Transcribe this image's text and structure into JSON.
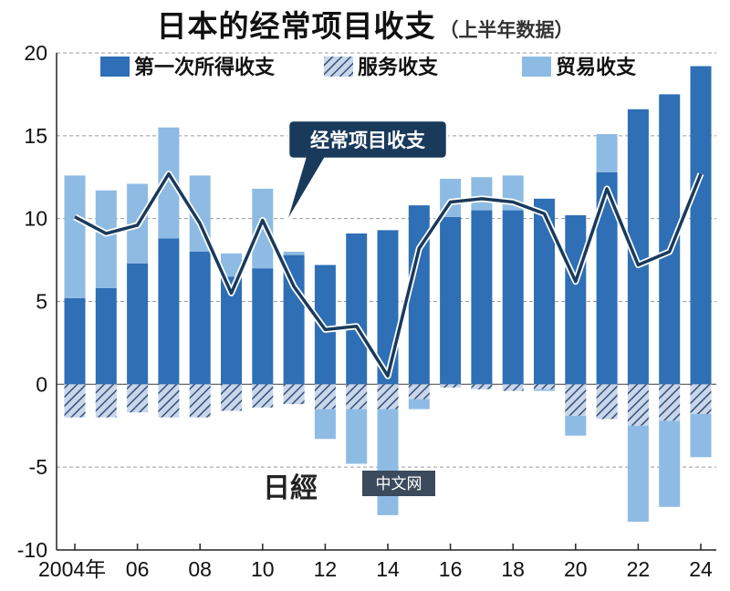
{
  "chart_data": {
    "type": "bar",
    "title": "日本的经常项目收支",
    "subtitle": "（上半年数据）",
    "years": [
      2004,
      2005,
      2006,
      2007,
      2008,
      2009,
      2010,
      2011,
      2012,
      2013,
      2014,
      2015,
      2016,
      2017,
      2018,
      2019,
      2020,
      2021,
      2022,
      2023,
      2024
    ],
    "series": [
      {
        "name": "第一次所得收支",
        "kind": "bar",
        "color": "#2e6fb6",
        "values": [
          5.2,
          5.8,
          7.3,
          8.8,
          8.0,
          6.5,
          7.0,
          7.8,
          7.2,
          9.1,
          9.3,
          10.8,
          10.1,
          10.5,
          10.5,
          11.2,
          10.2,
          12.8,
          16.6,
          17.5,
          19.2
        ]
      },
      {
        "name": "服务收支",
        "kind": "bar",
        "pattern": "hatch",
        "color": "#8aa6cf",
        "values": [
          -2.0,
          -2.0,
          -1.7,
          -2.0,
          -2.0,
          -1.6,
          -1.4,
          -1.2,
          -1.5,
          -1.5,
          -1.5,
          -0.9,
          -0.2,
          -0.3,
          -0.4,
          -0.3,
          -1.9,
          -2.1,
          -2.5,
          -2.2,
          -1.8
        ]
      },
      {
        "name": "贸易收支",
        "kind": "bar",
        "color": "#8dbbe3",
        "values": [
          7.4,
          5.9,
          4.8,
          6.7,
          4.6,
          1.4,
          4.8,
          0.2,
          -1.8,
          -3.3,
          -6.4,
          -0.6,
          2.3,
          2.0,
          2.1,
          -0.1,
          -1.2,
          2.3,
          -5.8,
          -5.2,
          -2.6
        ]
      },
      {
        "name": "经常项目收支",
        "kind": "line",
        "color": "#1a3a5c",
        "values": [
          10.1,
          9.1,
          9.6,
          12.7,
          9.7,
          5.5,
          9.9,
          5.9,
          3.3,
          3.5,
          0.5,
          8.2,
          11.0,
          11.2,
          11.0,
          10.3,
          6.2,
          11.8,
          7.2,
          8.0,
          12.7
        ]
      }
    ],
    "x_tick_labels": [
      "2004年",
      "06",
      "08",
      "10",
      "12",
      "14",
      "16",
      "18",
      "20",
      "22",
      "24"
    ],
    "y_ticks": [
      20,
      15,
      10,
      5,
      0,
      -5,
      -10
    ],
    "ylim": [
      -10,
      20
    ],
    "grid": true,
    "legend_position": "top"
  },
  "watermark": {
    "logo": "日經",
    "text": "中文网"
  }
}
